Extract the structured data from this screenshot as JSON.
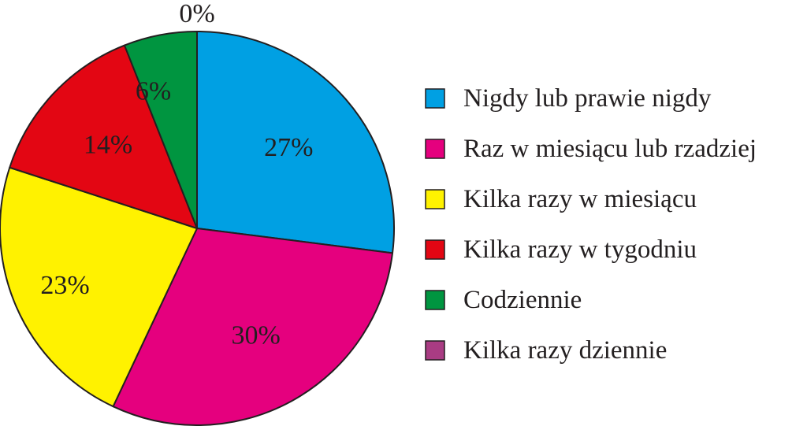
{
  "chart_data": {
    "type": "pie",
    "categories": [
      "Nigdy lub prawie nigdy",
      "Raz w miesiącu lub rzadziej",
      "Kilka razy w miesiącu",
      "Kilka razy w tygodniu",
      "Codziennie",
      "Kilka razy dziennie"
    ],
    "values": [
      27,
      30,
      23,
      14,
      6,
      0
    ],
    "data_labels": [
      "27%",
      "30%",
      "23%",
      "14%",
      "6%",
      "0%"
    ],
    "colors": [
      "#00a0e3",
      "#e5007e",
      "#fff200",
      "#e30613",
      "#009540",
      "#a93c83"
    ],
    "legend": "right",
    "start_angle": "top",
    "direction": "clockwise"
  }
}
